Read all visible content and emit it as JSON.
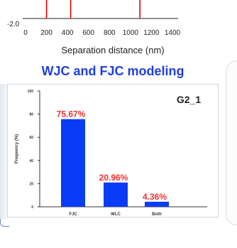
{
  "section": {
    "title": "WJC and FJC modeling"
  },
  "top_chart": {
    "type": "line",
    "xlabel": "Separation distance (nm)",
    "y_tick_label": "-2.0",
    "x_ticks": [
      0,
      200,
      400,
      600,
      800,
      1000,
      1200,
      1400
    ],
    "xlim": [
      0,
      1400
    ],
    "line_color": "#e00000",
    "marker_x": [
      200,
      430,
      1090
    ]
  },
  "chart_data": {
    "type": "bar",
    "title": "G2_1",
    "ylabel": "Frequency (%)",
    "categories": [
      "FJC",
      "WLC",
      "Both"
    ],
    "values": [
      75.67,
      20.96,
      4.36
    ],
    "value_labels": [
      "75.67%",
      "20.96%",
      "4.36%"
    ],
    "ylim": [
      0,
      100
    ],
    "y_ticks": [
      0,
      20,
      40,
      60,
      80,
      100
    ],
    "bar_color": "#0a3cf5",
    "label_color": "#f03030",
    "grid": false,
    "legend": "none"
  }
}
